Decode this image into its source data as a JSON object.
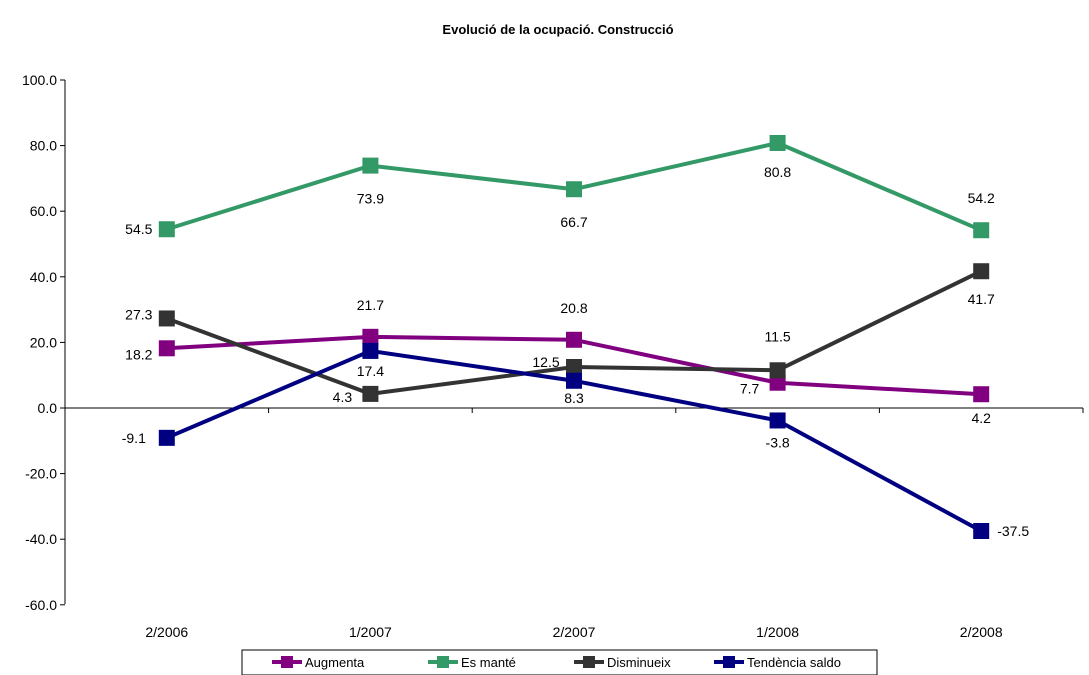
{
  "chart_data": {
    "type": "line",
    "title": "Evolució de la ocupació. Construcció",
    "xlabel": "",
    "ylabel": "",
    "categories": [
      "2/2006",
      "1/2007",
      "2/2007",
      "1/2008",
      "2/2008"
    ],
    "ylim": [
      -60,
      100
    ],
    "yticks": [
      "100.0",
      "80.0",
      "60.0",
      "40.0",
      "20.0",
      "0.0",
      "-20.0",
      "-40.0",
      "-60.0"
    ],
    "grid": false,
    "legend": "bottom",
    "series": [
      {
        "name": "Augmenta",
        "color": "#800080",
        "values": [
          18.2,
          21.7,
          20.8,
          7.7,
          4.2
        ],
        "labels": [
          "18.2",
          "21.7",
          "20.8",
          "7.7",
          "4.2"
        ]
      },
      {
        "name": "Es manté",
        "color": "#339966",
        "values": [
          54.5,
          73.9,
          66.7,
          80.8,
          54.2
        ],
        "labels": [
          "54.5",
          "73.9",
          "66.7",
          "80.8",
          "54.2"
        ]
      },
      {
        "name": "Disminueix",
        "color": "#333333",
        "values": [
          27.3,
          4.3,
          12.5,
          11.5,
          41.7
        ],
        "labels": [
          "27.3",
          "4.3",
          "12.5",
          "11.5",
          "41.7"
        ]
      },
      {
        "name": "Tendència saldo",
        "color": "#000080",
        "values": [
          -9.1,
          17.4,
          8.3,
          -3.8,
          -37.5
        ],
        "labels": [
          "-9.1",
          "17.4",
          "8.3",
          "-3.8",
          "-37.5"
        ]
      }
    ]
  }
}
